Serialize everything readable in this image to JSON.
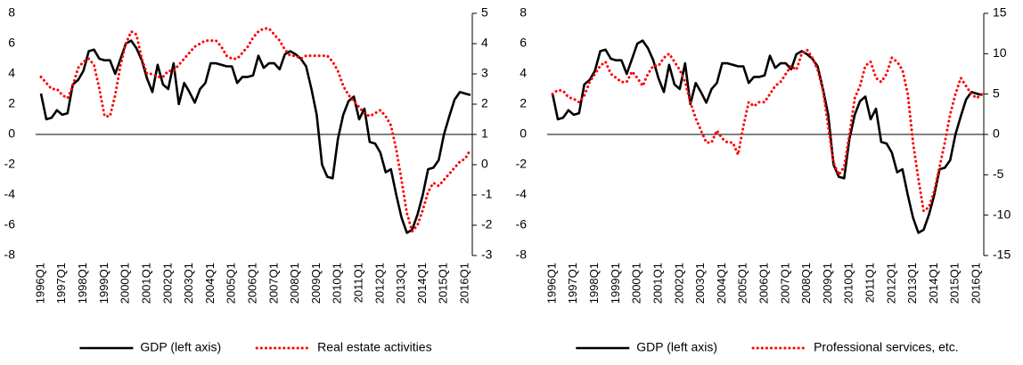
{
  "chart_data": [
    {
      "type": "line",
      "categories": [
        "1996Q1",
        null,
        null,
        null,
        "1997Q1",
        null,
        null,
        null,
        "1998Q1",
        null,
        null,
        null,
        "1999Q1",
        null,
        null,
        null,
        "2000Q1",
        null,
        null,
        null,
        "2001Q1",
        null,
        null,
        null,
        "2002Q1",
        null,
        null,
        null,
        "2003Q1",
        null,
        null,
        null,
        "2004Q1",
        null,
        null,
        null,
        "2005Q1",
        null,
        null,
        null,
        "2006Q1",
        null,
        null,
        null,
        "2007Q1",
        null,
        null,
        null,
        "2008Q1",
        null,
        null,
        null,
        "2009Q1",
        null,
        null,
        null,
        "2010Q1",
        null,
        null,
        null,
        "2011Q1",
        null,
        null,
        null,
        "2012Q1",
        null,
        null,
        null,
        "2013Q1",
        null,
        null,
        null,
        "2014Q1",
        null,
        null,
        null,
        "2015Q1",
        null,
        null,
        null,
        "2016Q1",
        null
      ],
      "series": [
        {
          "name": "GDP (left axis)",
          "color": "#000000",
          "style": "solid",
          "axis": "y",
          "values": [
            2.7,
            1.0,
            1.1,
            1.6,
            1.3,
            1.4,
            3.3,
            3.6,
            4.2,
            5.5,
            5.6,
            5.0,
            4.9,
            4.9,
            4.0,
            5.0,
            6.0,
            6.2,
            5.7,
            4.9,
            3.7,
            2.8,
            4.6,
            3.3,
            3.0,
            4.7,
            2.0,
            3.4,
            2.8,
            2.1,
            3.0,
            3.4,
            4.7,
            4.7,
            4.6,
            4.5,
            4.5,
            3.4,
            3.8,
            3.8,
            3.9,
            5.2,
            4.4,
            4.7,
            4.7,
            4.3,
            5.3,
            5.5,
            5.3,
            5.0,
            4.5,
            3.0,
            1.3,
            -2.0,
            -2.8,
            -2.9,
            -0.3,
            1.3,
            2.2,
            2.5,
            1.0,
            1.7,
            -0.5,
            -0.6,
            -1.2,
            -2.5,
            -2.3,
            -4.0,
            -5.5,
            -6.5,
            -6.3,
            -5.3,
            -4.0,
            -2.3,
            -2.2,
            -1.7,
            0.0,
            1.2,
            2.3,
            2.8,
            2.7,
            2.6
          ]
        },
        {
          "name": "Real estate activities",
          "color": "#ff0000",
          "style": "dotted",
          "axis": "y2",
          "values": [
            2.9,
            2.7,
            2.5,
            2.5,
            2.3,
            2.2,
            2.6,
            3.2,
            3.4,
            3.5,
            3.3,
            2.5,
            1.6,
            1.6,
            2.3,
            3.3,
            4.0,
            4.4,
            4.3,
            3.5,
            3.0,
            3.0,
            2.9,
            2.9,
            3.1,
            3.1,
            3.3,
            3.5,
            3.7,
            3.9,
            4.0,
            4.1,
            4.1,
            4.1,
            3.9,
            3.6,
            3.5,
            3.5,
            3.7,
            3.9,
            4.2,
            4.4,
            4.5,
            4.5,
            4.3,
            4.1,
            3.8,
            3.6,
            3.6,
            3.5,
            3.6,
            3.6,
            3.6,
            3.6,
            3.6,
            3.4,
            3.1,
            2.6,
            2.3,
            2.1,
            1.9,
            1.7,
            1.6,
            1.7,
            1.8,
            1.6,
            1.3,
            0.5,
            -0.5,
            -1.6,
            -2.2,
            -2.0,
            -1.5,
            -0.9,
            -0.6,
            -0.7,
            -0.5,
            -0.3,
            -0.1,
            0.1,
            0.2,
            0.5
          ]
        }
      ],
      "ylim": [
        -8,
        8
      ],
      "yticks": [
        -8,
        -6,
        -4,
        -2,
        0,
        2,
        4,
        6,
        8
      ],
      "y2lim": [
        -3,
        5
      ],
      "y2ticks": [
        -3,
        -2,
        -1,
        0,
        1,
        2,
        3,
        4,
        5
      ]
    },
    {
      "type": "line",
      "categories": [
        "1996Q1",
        null,
        null,
        null,
        "1997Q1",
        null,
        null,
        null,
        "1998Q1",
        null,
        null,
        null,
        "1999Q1",
        null,
        null,
        null,
        "2000Q1",
        null,
        null,
        null,
        "2001Q1",
        null,
        null,
        null,
        "2002Q1",
        null,
        null,
        null,
        "2003Q1",
        null,
        null,
        null,
        "2004Q1",
        null,
        null,
        null,
        "2005Q1",
        null,
        null,
        null,
        "2006Q1",
        null,
        null,
        null,
        "2007Q1",
        null,
        null,
        null,
        "2008Q1",
        null,
        null,
        null,
        "2009Q1",
        null,
        null,
        null,
        "2010Q1",
        null,
        null,
        null,
        "2011Q1",
        null,
        null,
        null,
        "2012Q1",
        null,
        null,
        null,
        "2013Q1",
        null,
        null,
        null,
        "2014Q1",
        null,
        null,
        null,
        "2015Q1",
        null,
        null,
        null,
        "2016Q1",
        null
      ],
      "series": [
        {
          "name": "GDP (left axis)",
          "color": "#000000",
          "style": "solid",
          "axis": "y",
          "values": [
            2.7,
            1.0,
            1.1,
            1.6,
            1.3,
            1.4,
            3.3,
            3.6,
            4.2,
            5.5,
            5.6,
            5.0,
            4.9,
            4.9,
            4.0,
            5.0,
            6.0,
            6.2,
            5.7,
            4.9,
            3.7,
            2.8,
            4.6,
            3.3,
            3.0,
            4.7,
            2.0,
            3.4,
            2.8,
            2.1,
            3.0,
            3.4,
            4.7,
            4.7,
            4.6,
            4.5,
            4.5,
            3.4,
            3.8,
            3.8,
            3.9,
            5.2,
            4.4,
            4.7,
            4.7,
            4.3,
            5.3,
            5.5,
            5.3,
            5.0,
            4.5,
            3.0,
            1.3,
            -2.0,
            -2.8,
            -2.9,
            -0.3,
            1.3,
            2.2,
            2.5,
            1.0,
            1.7,
            -0.5,
            -0.6,
            -1.2,
            -2.5,
            -2.3,
            -4.0,
            -5.5,
            -6.5,
            -6.3,
            -5.3,
            -4.0,
            -2.3,
            -2.2,
            -1.7,
            0.0,
            1.2,
            2.3,
            2.8,
            2.7,
            2.6
          ]
        },
        {
          "name": "Professional services, etc.",
          "color": "#ff0000",
          "style": "dotted",
          "axis": "y2",
          "values": [
            5.0,
            5.5,
            5.4,
            4.6,
            4.4,
            4.0,
            4.8,
            6.5,
            7.5,
            8.5,
            9.0,
            7.5,
            7.0,
            6.5,
            6.5,
            7.8,
            7.0,
            6.0,
            7.5,
            8.5,
            8.5,
            9.5,
            10.0,
            9.0,
            8.0,
            6.5,
            4.0,
            2.0,
            0.5,
            -1.0,
            -1.0,
            0.5,
            -0.5,
            -1.0,
            -1.0,
            -2.5,
            1.0,
            4.0,
            3.5,
            4.0,
            4.0,
            5.0,
            6.0,
            6.5,
            7.5,
            8.5,
            8.0,
            10.0,
            10.5,
            9.5,
            8.0,
            5.5,
            1.0,
            -3.5,
            -5.0,
            -4.0,
            0.0,
            4.5,
            6.0,
            8.5,
            9.0,
            7.0,
            6.5,
            7.5,
            9.5,
            9.0,
            8.0,
            5.0,
            -1.0,
            -5.5,
            -9.5,
            -9.0,
            -7.0,
            -4.0,
            -1.0,
            2.5,
            5.0,
            7.0,
            6.0,
            5.0,
            4.5,
            5.0
          ]
        }
      ],
      "ylim": [
        -8,
        8
      ],
      "yticks": [
        -8,
        -6,
        -4,
        -2,
        0,
        2,
        4,
        6,
        8
      ],
      "y2lim": [
        -15,
        15
      ],
      "y2ticks": [
        -15,
        -10,
        -5,
        0,
        5,
        10,
        15
      ]
    }
  ]
}
